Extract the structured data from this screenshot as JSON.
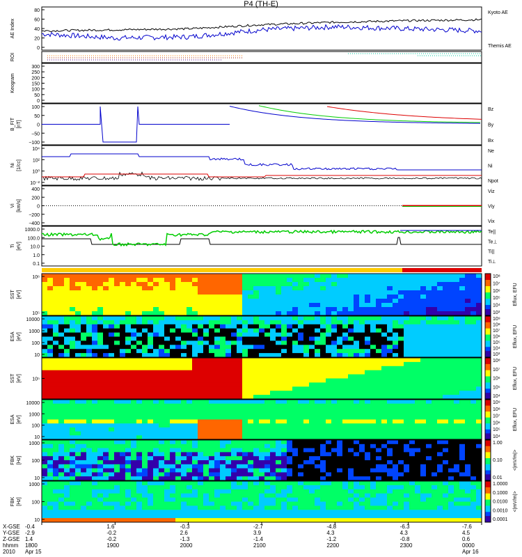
{
  "title": "P4 (TH-E)",
  "colors": {
    "red": "#dd0000",
    "green": "#00cc00",
    "blue": "#0000cc",
    "black": "#000000",
    "teal": "#00c8a0",
    "orange": "#ff8000"
  },
  "panels": {
    "ae": {
      "ylabel": "AE Index",
      "ticks": [
        "80",
        "60",
        "40",
        "20",
        "0"
      ],
      "legend": [
        "Kyoto AE",
        "Themis AE"
      ]
    },
    "roi": {
      "ylabel": "ROI"
    },
    "keogram": {
      "ylabel": "Keogram",
      "ticks": [
        "300",
        "250",
        "200",
        "150",
        "100",
        "50",
        "0"
      ]
    },
    "bfit": {
      "ylabel": "B_FIT\n[nT]",
      "ticks": [
        "100",
        "50",
        "0",
        "−50",
        "−100"
      ],
      "legend": [
        "Bz",
        "By",
        "Bx"
      ]
    },
    "ni": {
      "ylabel": "Ni\n[1/cc]",
      "ticks": [
        "10⁴",
        "10²",
        "10⁰",
        "10⁻²"
      ],
      "legend": [
        "Ne",
        "Ni",
        "Npot"
      ]
    },
    "vi": {
      "ylabel": "Vi\n[km/s]",
      "ticks": [
        "400",
        "200",
        "0",
        "−200",
        "−400"
      ],
      "legend": [
        "Viz",
        "Viy",
        "Vix"
      ]
    },
    "ti": {
      "ylabel": "Ti\n[eV]",
      "ticks": [
        "1000.0",
        "100.0",
        "10.0",
        "1.0",
        "0.1"
      ],
      "legend": [
        "Te||",
        "Te⊥",
        "Ti||",
        "Ti⊥"
      ]
    },
    "sst_i": {
      "ylabel": "SST\n[eV]",
      "ticks": [
        "10⁶",
        "10⁵"
      ],
      "cb": [
        "10⁸",
        "10⁷",
        "10⁶",
        "10⁵",
        "10⁴",
        "10³"
      ],
      "cblabel": "Eflux, EFU"
    },
    "esa_i": {
      "ylabel": "ESA\n[eV]",
      "ticks": [
        "10000",
        "1000",
        "100",
        "10"
      ],
      "cb": [
        "10⁹",
        "10⁸",
        "10⁷",
        "10⁶",
        "10⁵",
        "10⁴",
        "10³"
      ],
      "cblabel": "Eflux, EFU"
    },
    "sst_e": {
      "ylabel": "SST\n[eV]",
      "ticks": [
        "10⁵"
      ],
      "cb": [
        "10⁸",
        "10⁷",
        "10⁶",
        "10⁵",
        "10⁴"
      ],
      "cblabel": "Eflux, EFU"
    },
    "esa_e": {
      "ylabel": "ESA\n[eV]",
      "ticks": [
        "10000",
        "1000",
        "100",
        "10"
      ],
      "cb": [
        "10⁹",
        "10⁸",
        "10⁷",
        "10⁶",
        "10⁵",
        "10⁴"
      ],
      "cblabel": "Eflux, EFU"
    },
    "fbk1": {
      "ylabel": "FBK\n[Hz]",
      "ticks": [
        "1000",
        "100",
        "10"
      ],
      "cb": [
        "1.00",
        "0.10",
        "0.01"
      ],
      "cblabel": "<|mV/m|>"
    },
    "fbk2": {
      "ylabel": "FBK\n[Hz]",
      "ticks": [
        "1000",
        "100",
        "10"
      ],
      "cb": [
        "1.0000",
        "0.1000",
        "0.0100",
        "0.0010",
        "0.0001"
      ],
      "cblabel": "<|mV/m|>"
    }
  },
  "chart_data": {
    "type": "line",
    "x": [
      "1800",
      "1900",
      "2000",
      "2100",
      "2200",
      "2300",
      "0000"
    ],
    "ae_series": [
      {
        "name": "Kyoto AE",
        "values": [
          32,
          24,
          26,
          40,
          46,
          42,
          38
        ]
      },
      {
        "name": "Themis AE",
        "values": [
          38,
          40,
          42,
          50,
          55,
          58,
          60
        ]
      }
    ],
    "bottom_labels": {
      "rows": [
        "X-GSE",
        "Y-GSE",
        "Z-GSE",
        "hhmm",
        "2010"
      ],
      "columns": [
        [
          "-0.4",
          "-2.9",
          "1.4",
          "1800",
          "Apr 15"
        ],
        [
          "1.6",
          "-0.2",
          "-0.2",
          "1900",
          ""
        ],
        [
          "-0.3",
          "2.6",
          "-1.3",
          "2000",
          ""
        ],
        [
          "-2.7",
          "3.9",
          "-1.4",
          "2100",
          ""
        ],
        [
          "-4.8",
          "4.3",
          "-1.2",
          "2200",
          ""
        ],
        [
          "-6.3",
          "4.3",
          "-0.8",
          "2300",
          ""
        ],
        [
          "-7.6",
          "4.5",
          "0.6",
          "0000",
          "Apr 16"
        ]
      ]
    }
  }
}
